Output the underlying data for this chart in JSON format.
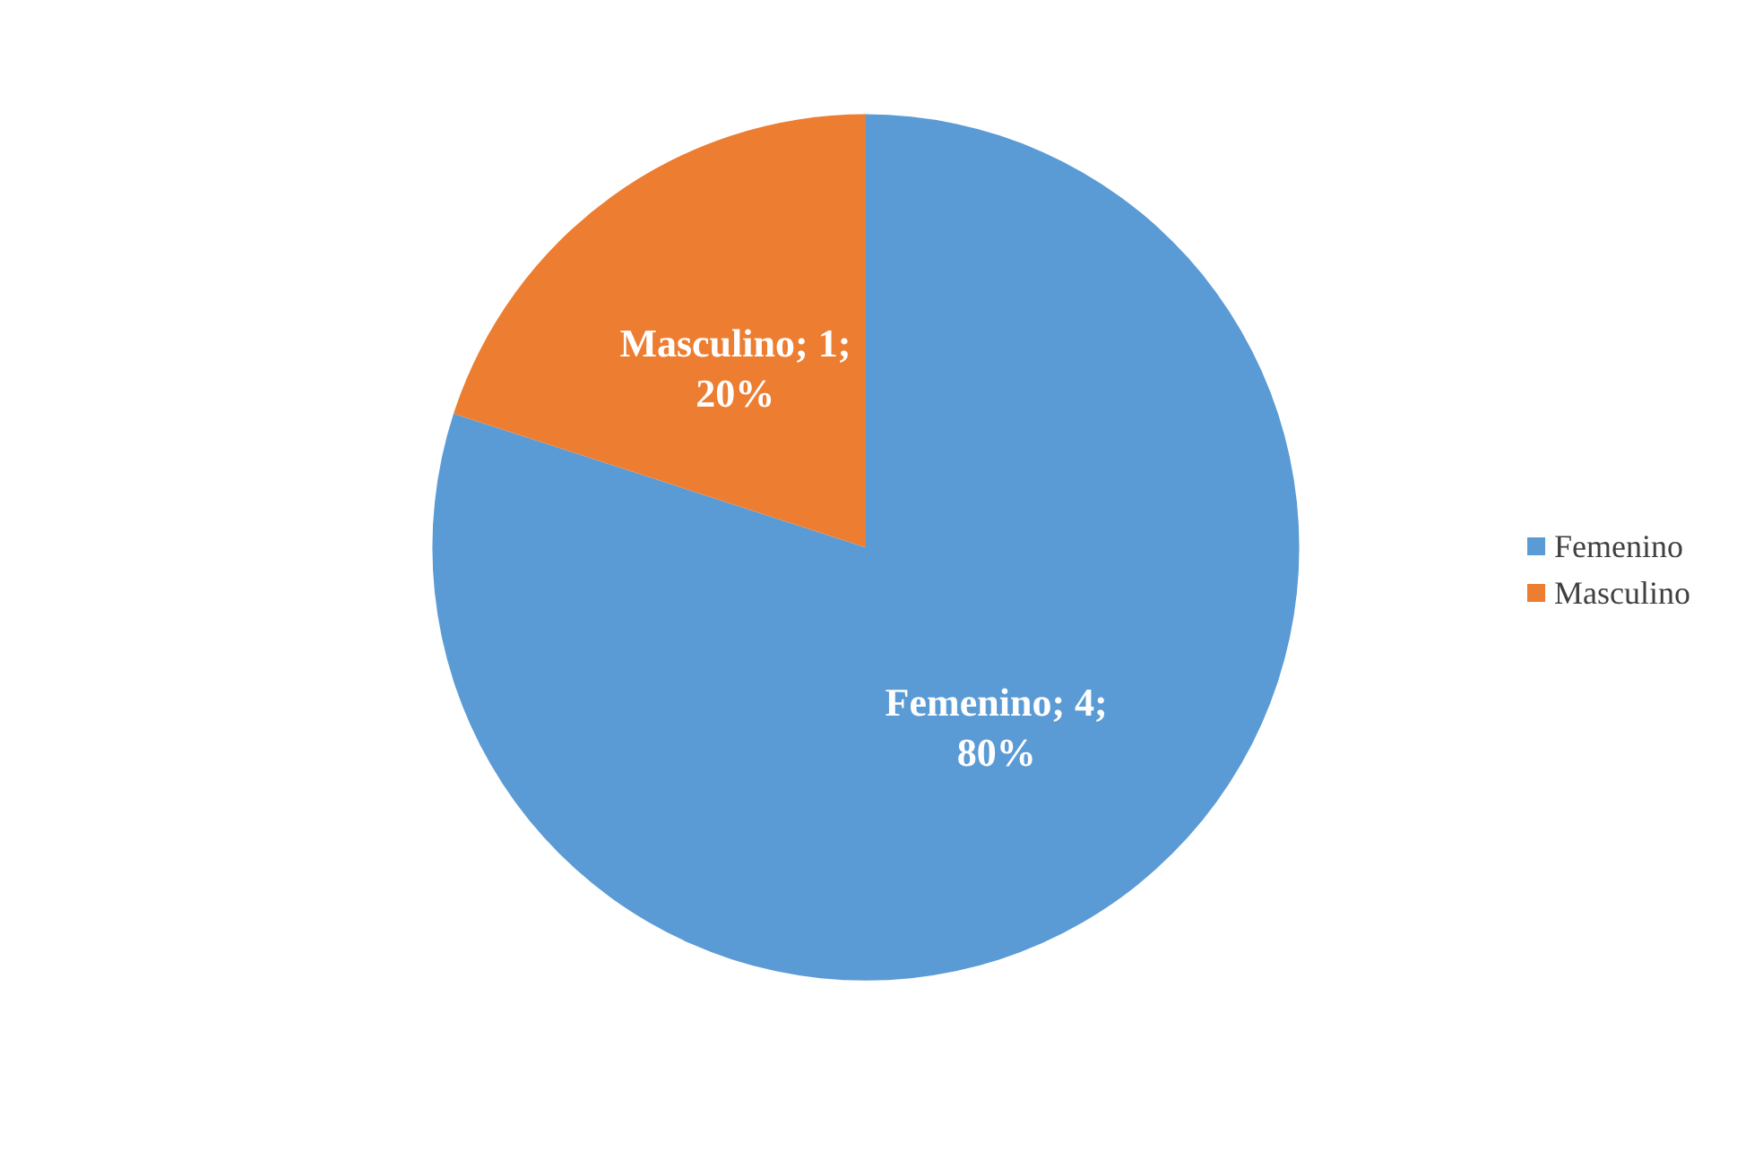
{
  "chart_data": {
    "type": "pie",
    "categories": [
      "Femenino",
      "Masculino"
    ],
    "values": [
      4,
      1
    ],
    "colors": [
      "#5b9bd5",
      "#ed7d31"
    ],
    "value_labels": [
      "Femenino; 4;\n80%",
      "Masculino; 1;\n20%"
    ],
    "legend": "right"
  }
}
